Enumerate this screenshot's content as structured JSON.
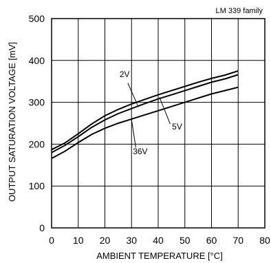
{
  "chart_data": {
    "type": "line",
    "title": "",
    "annotation": "LM 339 family",
    "xlabel": "AMBIENT TEMPERATURE [°C]",
    "ylabel": "OUTPUT SATURATION VOLTAGE [mV]",
    "xlim": [
      0,
      80
    ],
    "ylim": [
      0,
      500
    ],
    "xticks": [
      0,
      10,
      20,
      30,
      40,
      50,
      60,
      70,
      80
    ],
    "yticks": [
      0,
      100,
      200,
      300,
      400,
      500
    ],
    "x_tick_labels": [
      "0",
      "10",
      "20",
      "30",
      "40",
      "50",
      "60",
      "70",
      "80"
    ],
    "y_tick_labels": [
      "0",
      "100",
      "200",
      "300",
      "400",
      "500"
    ],
    "grid": true,
    "legend": "none",
    "series": [
      {
        "name": "2V",
        "x": [
          0,
          5,
          10,
          15,
          20,
          25,
          30,
          35,
          40,
          45,
          50,
          55,
          60,
          65,
          70
        ],
        "y": [
          187,
          203,
          225,
          248,
          268,
          283,
          296,
          307,
          318,
          328,
          338,
          348,
          357,
          365,
          375
        ]
      },
      {
        "name": "5V",
        "x": [
          0,
          5,
          10,
          15,
          20,
          25,
          30,
          35,
          40,
          45,
          50,
          55,
          60,
          65,
          70
        ],
        "y": [
          180,
          197,
          218,
          240,
          258,
          273,
          285,
          297,
          308,
          318,
          328,
          338,
          348,
          356,
          366
        ]
      },
      {
        "name": "36V",
        "x": [
          0,
          5,
          10,
          15,
          20,
          25,
          30,
          35,
          40,
          45,
          50,
          55,
          60,
          65,
          70
        ],
        "y": [
          166,
          183,
          204,
          223,
          238,
          250,
          260,
          270,
          280,
          290,
          300,
          310,
          320,
          328,
          336
        ]
      }
    ]
  }
}
